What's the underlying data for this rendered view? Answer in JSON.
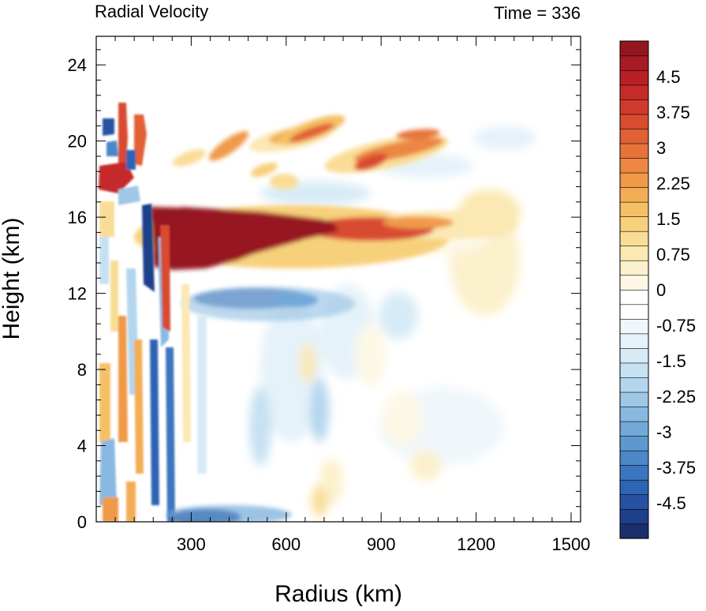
{
  "chart_data": {
    "type": "heatmap",
    "title_left": "Radial Velocity",
    "title_right": "Time = 336",
    "xlabel": "Radius (km)",
    "ylabel": "Height (km)",
    "xlim": [
      0,
      1530
    ],
    "ylim": [
      0,
      25.5
    ],
    "xticks": [
      300,
      600,
      900,
      1200,
      1500
    ],
    "yticks": [
      0,
      4,
      8,
      12,
      16,
      20,
      24
    ],
    "colorbar": {
      "levels": [
        -5.25,
        -5.0,
        -4.75,
        -4.5,
        -4.25,
        -4.0,
        -3.75,
        -3.5,
        -3.25,
        -3.0,
        -2.75,
        -2.5,
        -2.25,
        -2.0,
        -1.75,
        -1.5,
        -1.25,
        -1.0,
        -0.75,
        -0.5,
        -0.25,
        0,
        0.25,
        0.5,
        0.75,
        1.0,
        1.25,
        1.5,
        1.75,
        2.0,
        2.25,
        2.5,
        2.75,
        3.0,
        3.25,
        3.5,
        3.75,
        4.0,
        4.25,
        4.5,
        4.75,
        5.0,
        5.25
      ],
      "labels": [
        "4.5",
        "3.75",
        "3",
        "2.25",
        "1.5",
        "0.75",
        "0",
        "-0.75",
        "-1.5",
        "-2.25",
        "-3",
        "-3.75",
        "-4.5"
      ],
      "label_values": [
        4.5,
        3.75,
        3.0,
        2.25,
        1.5,
        0.75,
        0,
        -0.75,
        -1.5,
        -2.25,
        -3.0,
        -3.75,
        -4.5
      ],
      "colors": [
        "#1a2f6b",
        "#1e3f8a",
        "#2652a3",
        "#2d64b4",
        "#3a76bf",
        "#4a88c8",
        "#5d99d0",
        "#72a9d8",
        "#89b9e0",
        "#9fc8e7",
        "#b3d6ee",
        "#c6e1f2",
        "#d7ebf6",
        "#e5f2f9",
        "#f0f7fb",
        "#ffffff",
        "#ffffff",
        "#fdf8e6",
        "#fcf1cd",
        "#fbe8b2",
        "#f9dd96",
        "#f7d07c",
        "#f5c065",
        "#f3ae55",
        "#f09a49",
        "#ec8642",
        "#e7733b",
        "#e16035",
        "#d84c30",
        "#cf3a2c",
        "#c42b29",
        "#b82026",
        "#a81a24",
        "#961620"
      ]
    },
    "features": [
      {
        "name": "upper outflow jet",
        "r": [
          190,
          780
        ],
        "z": [
          13.0,
          16.2
        ],
        "value": 5.25
      },
      {
        "name": "outflow jet extension",
        "r": [
          780,
          1100
        ],
        "z": [
          14.5,
          16.0
        ],
        "value": 3.5
      },
      {
        "name": "weak outer outflow",
        "r": [
          1100,
          1350
        ],
        "z": [
          10.0,
          17.5
        ],
        "value": 0.9
      },
      {
        "name": "inflow below outflow",
        "r": [
          280,
          520
        ],
        "z": [
          10.8,
          12.5
        ],
        "value": -4.0
      },
      {
        "name": "upper outflow band A",
        "r": [
          330,
          720
        ],
        "z": [
          18.0,
          21.0
        ],
        "value": 3.5
      },
      {
        "name": "upper outflow band B",
        "r": [
          760,
          1100
        ],
        "z": [
          17.5,
          20.5
        ],
        "value": 3.5
      },
      {
        "name": "boundary layer inflow",
        "r": [
          200,
          400
        ],
        "z": [
          0,
          1.0
        ],
        "value": -5.0
      },
      {
        "name": "inner core oscillations",
        "r": [
          0,
          240
        ],
        "z": [
          0,
          21.5
        ],
        "value": "alternating"
      }
    ]
  }
}
